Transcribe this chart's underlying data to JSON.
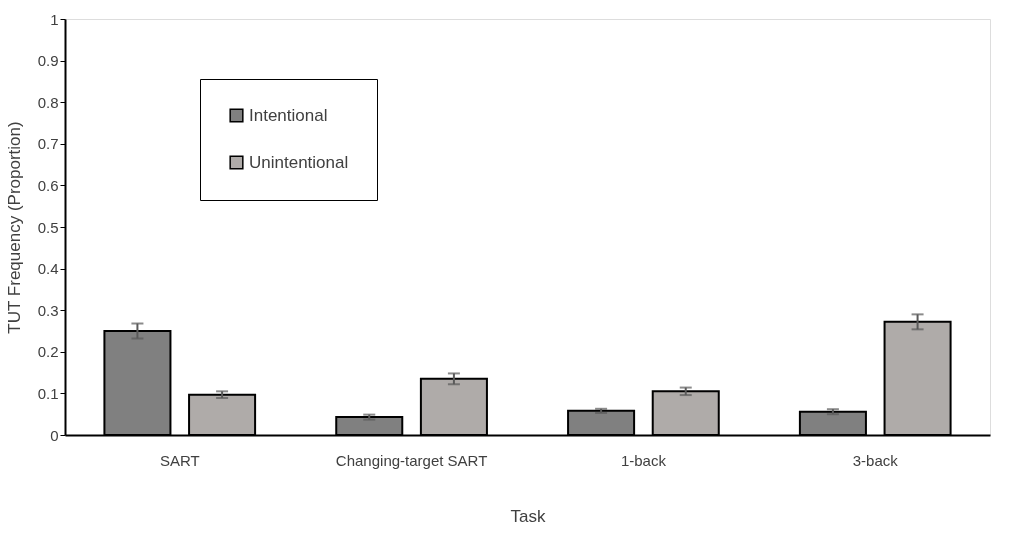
{
  "chart_data": {
    "type": "bar",
    "xlabel": "Task",
    "ylabel": "TUT Frequency (Proportion)",
    "categories": [
      "SART",
      "Changing-target SART",
      "1-back",
      "3-back"
    ],
    "series": [
      {
        "name": "Intentional",
        "color": "#808080",
        "values": [
          0.25,
          0.043,
          0.058,
          0.056
        ],
        "errors": [
          0.018,
          0.006,
          0.005,
          0.006
        ]
      },
      {
        "name": "Unintentional",
        "color": "#afaba9",
        "values": [
          0.097,
          0.135,
          0.105,
          0.272
        ],
        "errors": [
          0.008,
          0.013,
          0.009,
          0.018
        ]
      }
    ],
    "ylim": [
      0,
      1
    ],
    "yticks": [
      0,
      0.1,
      0.2,
      0.3,
      0.4,
      0.5,
      0.6,
      0.7,
      0.8,
      0.9,
      1
    ],
    "grid": false,
    "legend": "top left"
  }
}
